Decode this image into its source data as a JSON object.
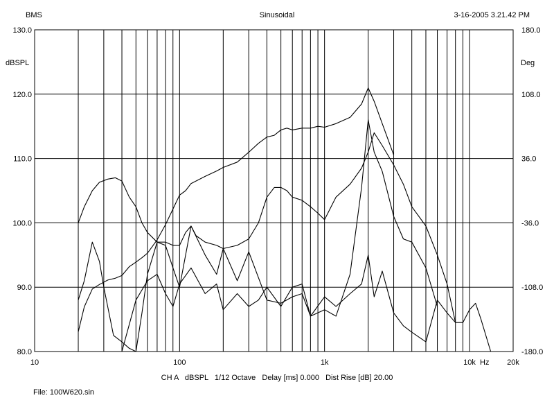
{
  "header": {
    "left": "BMS",
    "center": "Sinusoidal",
    "right": "3-16-2005 3.21.42 PM"
  },
  "footer": {
    "settings": "CH A   dBSPL   1/12 Octave   Delay [ms] 0.000   Dist Rise [dB] 20.00",
    "file": "File: 100W620.sin"
  },
  "chart_data": {
    "type": "line",
    "x_scale": "log",
    "xlim": [
      10,
      20000
    ],
    "x_ticks": [
      {
        "value": 10,
        "label": "10"
      },
      {
        "value": 100,
        "label": "100"
      },
      {
        "value": 1000,
        "label": "1k"
      },
      {
        "value": 10000,
        "label": "10k"
      },
      {
        "value": 20000,
        "label": "20k"
      }
    ],
    "x_unit_label": "Hz",
    "y_left": {
      "label": "dBSPL",
      "lim": [
        80,
        130
      ],
      "ticks": [
        "80.0",
        "90.0",
        "100.0",
        "110.0",
        "120.0",
        "130.0"
      ]
    },
    "y_right": {
      "label": "Deg",
      "lim": [
        -180,
        180
      ],
      "ticks": [
        "-180.0",
        "-108.0",
        "-36.0",
        "36.0",
        "108.0",
        "180.0"
      ]
    },
    "grid": true,
    "series": [
      {
        "role": "spl_response",
        "x": [
          20,
          22,
          25,
          28,
          32,
          36,
          40,
          45,
          50,
          55,
          60,
          70,
          80,
          90,
          100,
          110,
          120,
          130,
          150,
          180,
          200,
          250,
          300,
          350,
          400,
          450,
          500,
          550,
          600,
          700,
          800,
          900,
          1000,
          1200,
          1500,
          1800,
          2000,
          2200,
          2500,
          3000,
          3500,
          4000,
          5000,
          6000,
          7000,
          8000
        ],
        "y": [
          100.0,
          102.5,
          105.0,
          106.3,
          106.8,
          107.0,
          106.5,
          104.0,
          102.5,
          100.0,
          98.5,
          97.0,
          97.0,
          96.5,
          96.5,
          98.5,
          99.5,
          98.0,
          97.0,
          96.5,
          96.0,
          96.5,
          97.5,
          100.0,
          104.0,
          105.5,
          105.5,
          105.0,
          104.0,
          103.5,
          102.5,
          101.5,
          100.5,
          104.0,
          106.0,
          108.5,
          111.0,
          114.0,
          112.0,
          109.0,
          106.0,
          102.5,
          99.5,
          95.0,
          90.5,
          84.5
        ]
      },
      {
        "role": "phase",
        "x": [
          20,
          22,
          25,
          28,
          32,
          36,
          40,
          45,
          50,
          55,
          60,
          70,
          80,
          100,
          110,
          120,
          150,
          180,
          200,
          250,
          300,
          350,
          400,
          450,
          500,
          550,
          600,
          700,
          800,
          900,
          1000,
          1200,
          1500,
          1800,
          2000,
          2200,
          2500,
          3000
        ],
        "y": [
          -158,
          -130,
          -110,
          -105,
          -100,
          -98,
          -95,
          -85,
          -80,
          -75,
          -70,
          -55,
          -38,
          -5,
          0,
          8,
          16,
          22,
          26,
          32,
          43,
          53,
          60,
          62,
          68,
          70,
          68,
          70,
          70,
          72,
          71,
          75,
          82,
          97,
          115,
          100,
          75,
          40
        ]
      },
      {
        "role": "second_harmonic",
        "x": [
          20,
          22,
          25,
          28,
          30,
          35,
          40,
          45,
          50,
          55,
          60,
          70,
          80,
          90,
          100,
          120,
          150,
          180,
          200,
          250,
          300,
          400,
          500,
          600,
          700,
          800,
          1000,
          1200,
          1500,
          1800,
          2000,
          2200,
          2500,
          3000,
          3500,
          4000,
          5000,
          6000
        ],
        "y": [
          88.0,
          91.0,
          97.0,
          94.0,
          90.0,
          82.5,
          81.5,
          80.5,
          80.0,
          86.0,
          92.0,
          97.0,
          96.5,
          93.0,
          90.0,
          99.5,
          95.0,
          92.0,
          96.0,
          91.0,
          95.5,
          88.0,
          87.5,
          88.5,
          89.0,
          85.5,
          86.5,
          85.5,
          92.0,
          105.5,
          116.0,
          111.0,
          108.0,
          101.0,
          97.5,
          97.0,
          93.0,
          87.0
        ]
      },
      {
        "role": "third_harmonic",
        "x": [
          20,
          25,
          30,
          40,
          50,
          60,
          70,
          80,
          90,
          100,
          120,
          150,
          180,
          200,
          250,
          300,
          350,
          400,
          500,
          600,
          700,
          800,
          1000,
          1200,
          1500,
          1800,
          2000,
          2200,
          2500,
          3000,
          3500,
          4000,
          5000,
          6000,
          7000,
          8000,
          9000,
          10000,
          11000,
          12000,
          14000
        ],
        "y": [
          80.0,
          80.0,
          80.0,
          80.0,
          88.0,
          91.0,
          92.0,
          89.0,
          87.0,
          90.5,
          93.0,
          89.0,
          90.5,
          86.5,
          89.0,
          87.0,
          88.0,
          90.0,
          87.0,
          90.0,
          90.5,
          85.5,
          88.5,
          87.0,
          89.0,
          90.5,
          95.0,
          88.5,
          92.5,
          86.0,
          84.0,
          83.0,
          81.5,
          88.0,
          86.0,
          84.5,
          84.5,
          86.5,
          87.5,
          85.0,
          80.0
        ]
      }
    ]
  }
}
